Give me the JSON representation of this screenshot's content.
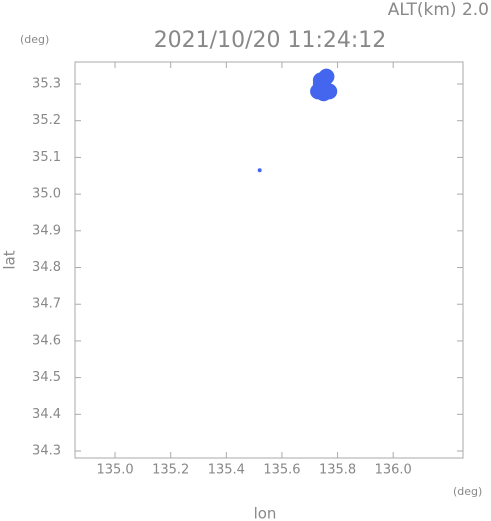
{
  "chart_data": {
    "type": "scatter",
    "header": "ALT(km) 2.0",
    "title": "2021/10/20 11:24:12",
    "y_unit": "(deg)",
    "x_unit": "(deg)",
    "xlabel": "lon",
    "ylabel": "lat",
    "x": [
      135.52,
      135.73,
      135.75,
      135.76,
      135.74,
      135.77,
      135.75,
      135.74
    ],
    "values": [
      35.065,
      35.28,
      35.29,
      35.32,
      35.3,
      35.28,
      35.275,
      35.31
    ],
    "color": "#4466ee",
    "xlim": [
      134.856,
      136.251
    ],
    "ylim": [
      34.281,
      35.36
    ],
    "xticks": [
      {
        "value": 135,
        "label": "135.0"
      },
      135.2,
      135.4,
      135.6,
      135.8,
      {
        "value": 136,
        "label": "136.0"
      }
    ],
    "yticks": [
      34.3,
      34.4,
      34.5,
      34.6,
      34.7,
      34.8,
      34.9,
      {
        "value": 35,
        "label": "35.0"
      },
      35.1,
      35.2,
      35.3
    ],
    "grid": false
  }
}
